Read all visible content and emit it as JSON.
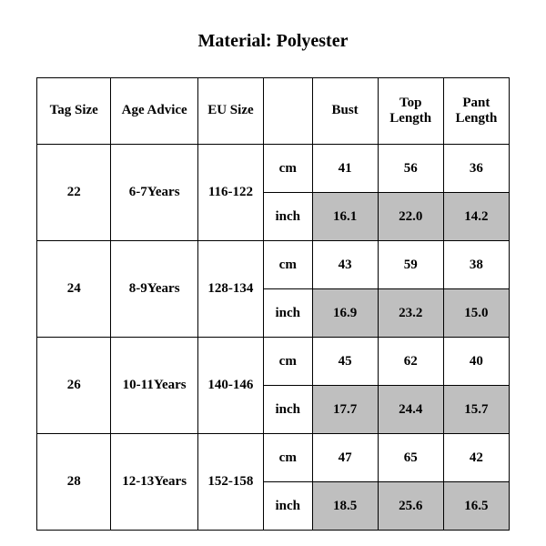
{
  "title": "Material: Polyester",
  "table": {
    "columns": [
      "Tag Size",
      "Age Advice",
      "EU Size",
      "",
      "Bust",
      "Top Length",
      "Pant Length"
    ],
    "unit_labels": {
      "cm": "cm",
      "inch": "inch"
    },
    "shaded_bg": "#bfbfbf",
    "border_color": "#000000",
    "font_family": "Times New Roman",
    "header_fontsize_pt": 12,
    "cell_fontsize_pt": 12,
    "rows": [
      {
        "tag_size": "22",
        "age_advice": "6-7Years",
        "eu_size": "116-122",
        "cm": {
          "bust": "41",
          "top_length": "56",
          "pant_length": "36"
        },
        "inch": {
          "bust": "16.1",
          "top_length": "22.0",
          "pant_length": "14.2"
        }
      },
      {
        "tag_size": "24",
        "age_advice": "8-9Years",
        "eu_size": "128-134",
        "cm": {
          "bust": "43",
          "top_length": "59",
          "pant_length": "38"
        },
        "inch": {
          "bust": "16.9",
          "top_length": "23.2",
          "pant_length": "15.0"
        }
      },
      {
        "tag_size": "26",
        "age_advice": "10-11Years",
        "eu_size": "140-146",
        "cm": {
          "bust": "45",
          "top_length": "62",
          "pant_length": "40"
        },
        "inch": {
          "bust": "17.7",
          "top_length": "24.4",
          "pant_length": "15.7"
        }
      },
      {
        "tag_size": "28",
        "age_advice": "12-13Years",
        "eu_size": "152-158",
        "cm": {
          "bust": "47",
          "top_length": "65",
          "pant_length": "42"
        },
        "inch": {
          "bust": "18.5",
          "top_length": "25.6",
          "pant_length": "16.5"
        }
      }
    ]
  }
}
